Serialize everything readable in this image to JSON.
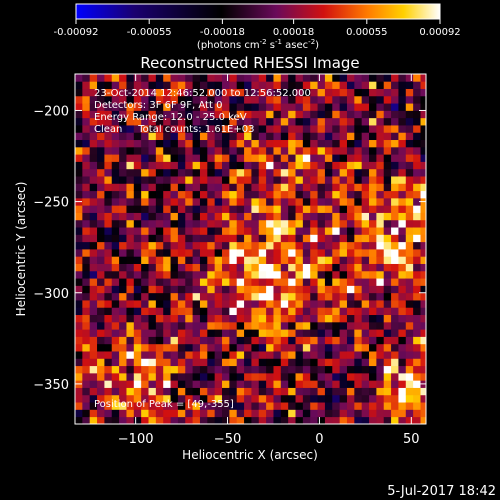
{
  "colorbar": {
    "tick_labels": [
      "-0.00092",
      "-0.00055",
      "-0.00018",
      "0.00018",
      "0.00055",
      "0.00092"
    ],
    "tick_values": [
      -0.00092,
      -0.00055,
      -0.00018,
      0.00018,
      0.00055,
      0.00092
    ],
    "range": [
      -0.00092,
      0.00092
    ],
    "unit_label": "(photons cm",
    "unit_exp1": "-2",
    "unit_mid": " s",
    "unit_exp2": "-1",
    "unit_mid2": " asec",
    "unit_exp3": "-2",
    "unit_end": ")",
    "colors": [
      "#0000ff",
      "#1a0070",
      "#000000",
      "#6a0a5a",
      "#d01010",
      "#ff7a00",
      "#ffd000",
      "#ffffff"
    ]
  },
  "chart_data": {
    "type": "heatmap",
    "title": "Reconstructed RHESSI Image",
    "xlabel": "Heliocentric X (arcsec)",
    "ylabel": "Heliocentric Y (arcsec)",
    "xlim": [
      -133,
      58
    ],
    "ylim": [
      -372,
      -180
    ],
    "x_ticks": [
      -100,
      -50,
      0,
      50
    ],
    "y_ticks": [
      -200,
      -250,
      -300,
      -350
    ],
    "x_tick_labels": [
      "−100",
      "−50",
      "0",
      "50"
    ],
    "y_tick_labels": [
      "−200",
      "−250",
      "−300",
      "−350"
    ],
    "grid": false,
    "annotations": {
      "line1": "23-Oct-2014 12:46:52.000 to 12:56:52.000",
      "line2": "Detectors: 3F 6F 9F, Att 0",
      "line3": "Energy Range: 12.0 - 25.0 keV",
      "line4": "Clean     Total counts: 1.61E+03",
      "peak": "Position of Peak = [49,-355]"
    },
    "peak_position": [
      49,
      -355
    ],
    "pixel_size_arcsec": 4.0
  },
  "footer": {
    "date": "5-Jul-2017 18:42"
  }
}
